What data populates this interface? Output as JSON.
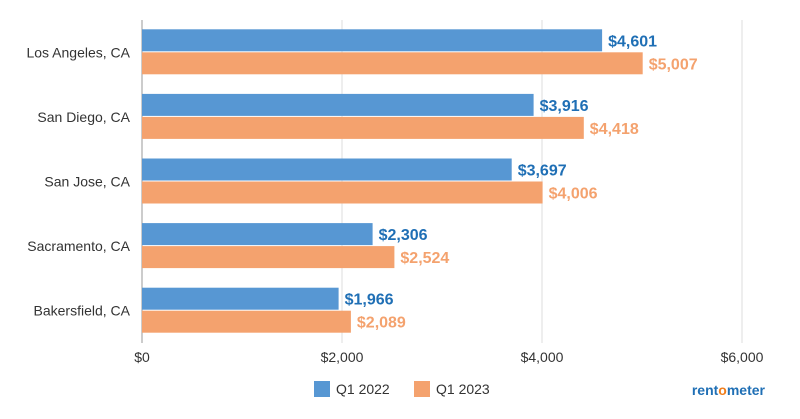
{
  "chart_data": {
    "type": "bar",
    "orientation": "horizontal",
    "categories": [
      "Los Angeles, CA",
      "San Diego, CA",
      "San Jose, CA",
      "Sacramento, CA",
      "Bakersfield, CA"
    ],
    "series": [
      {
        "name": "Q1 2022",
        "values": [
          4601,
          3916,
          3697,
          2306,
          1966
        ],
        "labels": [
          "$4,601",
          "$3,916",
          "$3,697",
          "$2,306",
          "$1,966"
        ],
        "color": "#5797d3",
        "label_color": "#1f6fb5"
      },
      {
        "name": "Q1 2023",
        "values": [
          5007,
          4418,
          4006,
          2524,
          2089
        ],
        "labels": [
          "$5,007",
          "$4,418",
          "$4,006",
          "$2,524",
          "$2,089"
        ],
        "color": "#f4a26e",
        "label_color": "#f4a26e"
      }
    ],
    "xlim": [
      0,
      6000
    ],
    "ticks": [
      0,
      2000,
      4000,
      6000
    ],
    "tick_labels": [
      "$0",
      "$2,000",
      "$4,000",
      "$6,000"
    ],
    "grid": true,
    "legend_placement": "bottom"
  },
  "logo": {
    "text": "rentometer",
    "color": "#1f6fb5",
    "accent": "#f07d1a"
  }
}
